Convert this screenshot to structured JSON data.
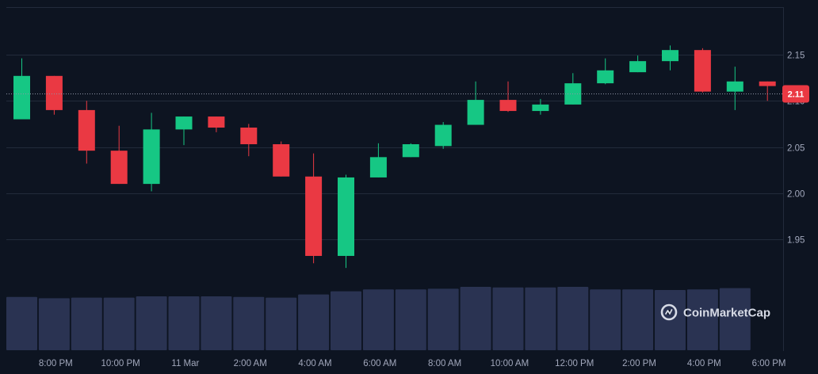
{
  "chart_data": {
    "type": "candlestick",
    "x_tick_labels": [
      "8:00 PM",
      "10:00 PM",
      "11 Mar",
      "2:00 AM",
      "4:00 AM",
      "6:00 AM",
      "8:00 AM",
      "10:00 AM",
      "12:00 PM",
      "2:00 PM",
      "4:00 PM",
      "6:00 PM"
    ],
    "y_tick_labels": [
      "2.15",
      "2.10",
      "2.05",
      "2.00",
      "1.95"
    ],
    "y_ticks": [
      2.15,
      2.1,
      2.05,
      2.0,
      1.95
    ],
    "ylim": [
      1.885,
      2.195
    ],
    "current_price": 2.11,
    "current_price_label": "2.11",
    "candles": [
      {
        "o": 2.08,
        "h": 2.146,
        "l": 2.08,
        "c": 2.127
      },
      {
        "o": 2.127,
        "h": 2.127,
        "l": 2.085,
        "c": 2.09
      },
      {
        "o": 2.09,
        "h": 2.1,
        "l": 2.032,
        "c": 2.046
      },
      {
        "o": 2.046,
        "h": 2.073,
        "l": 2.01,
        "c": 2.01
      },
      {
        "o": 2.01,
        "h": 2.087,
        "l": 2.002,
        "c": 2.069
      },
      {
        "o": 2.069,
        "h": 2.083,
        "l": 2.052,
        "c": 2.083
      },
      {
        "o": 2.083,
        "h": 2.083,
        "l": 2.066,
        "c": 2.071
      },
      {
        "o": 2.071,
        "h": 2.075,
        "l": 2.04,
        "c": 2.053
      },
      {
        "o": 2.053,
        "h": 2.056,
        "l": 2.018,
        "c": 2.018
      },
      {
        "o": 2.018,
        "h": 2.043,
        "l": 1.924,
        "c": 1.932
      },
      {
        "o": 1.932,
        "h": 2.02,
        "l": 1.919,
        "c": 2.017
      },
      {
        "o": 2.017,
        "h": 2.054,
        "l": 2.017,
        "c": 2.039
      },
      {
        "o": 2.039,
        "h": 2.054,
        "l": 2.039,
        "c": 2.053
      },
      {
        "o": 2.051,
        "h": 2.077,
        "l": 2.048,
        "c": 2.074
      },
      {
        "o": 2.074,
        "h": 2.121,
        "l": 2.074,
        "c": 2.101
      },
      {
        "o": 2.101,
        "h": 2.121,
        "l": 2.088,
        "c": 2.089
      },
      {
        "o": 2.089,
        "h": 2.102,
        "l": 2.085,
        "c": 2.096
      },
      {
        "o": 2.096,
        "h": 2.13,
        "l": 2.096,
        "c": 2.119
      },
      {
        "o": 2.119,
        "h": 2.146,
        "l": 2.118,
        "c": 2.133
      },
      {
        "o": 2.131,
        "h": 2.149,
        "l": 2.131,
        "c": 2.143
      },
      {
        "o": 2.143,
        "h": 2.16,
        "l": 2.133,
        "c": 2.155
      },
      {
        "o": 2.155,
        "h": 2.157,
        "l": 2.109,
        "c": 2.11
      },
      {
        "o": 2.11,
        "h": 2.137,
        "l": 2.09,
        "c": 2.121
      },
      {
        "o": 2.121,
        "h": 2.121,
        "l": 2.1,
        "c": 2.116
      }
    ],
    "volume_relative": [
      0.84,
      0.82,
      0.83,
      0.83,
      0.85,
      0.85,
      0.85,
      0.84,
      0.83,
      0.88,
      0.93,
      0.96,
      0.96,
      0.97,
      1.0,
      0.99,
      0.99,
      1.0,
      0.96,
      0.96,
      0.95,
      0.96,
      0.98,
      0.0
    ],
    "colors": {
      "up": "#16c784",
      "down": "#ea3943",
      "volume": "#2a3352",
      "grid": "#222b3b",
      "background": "#0d1421",
      "axis_text": "#a1a7bb"
    }
  },
  "brand": {
    "name": "CoinMarketCap",
    "icon": "coinmarketcap-logo-icon"
  }
}
